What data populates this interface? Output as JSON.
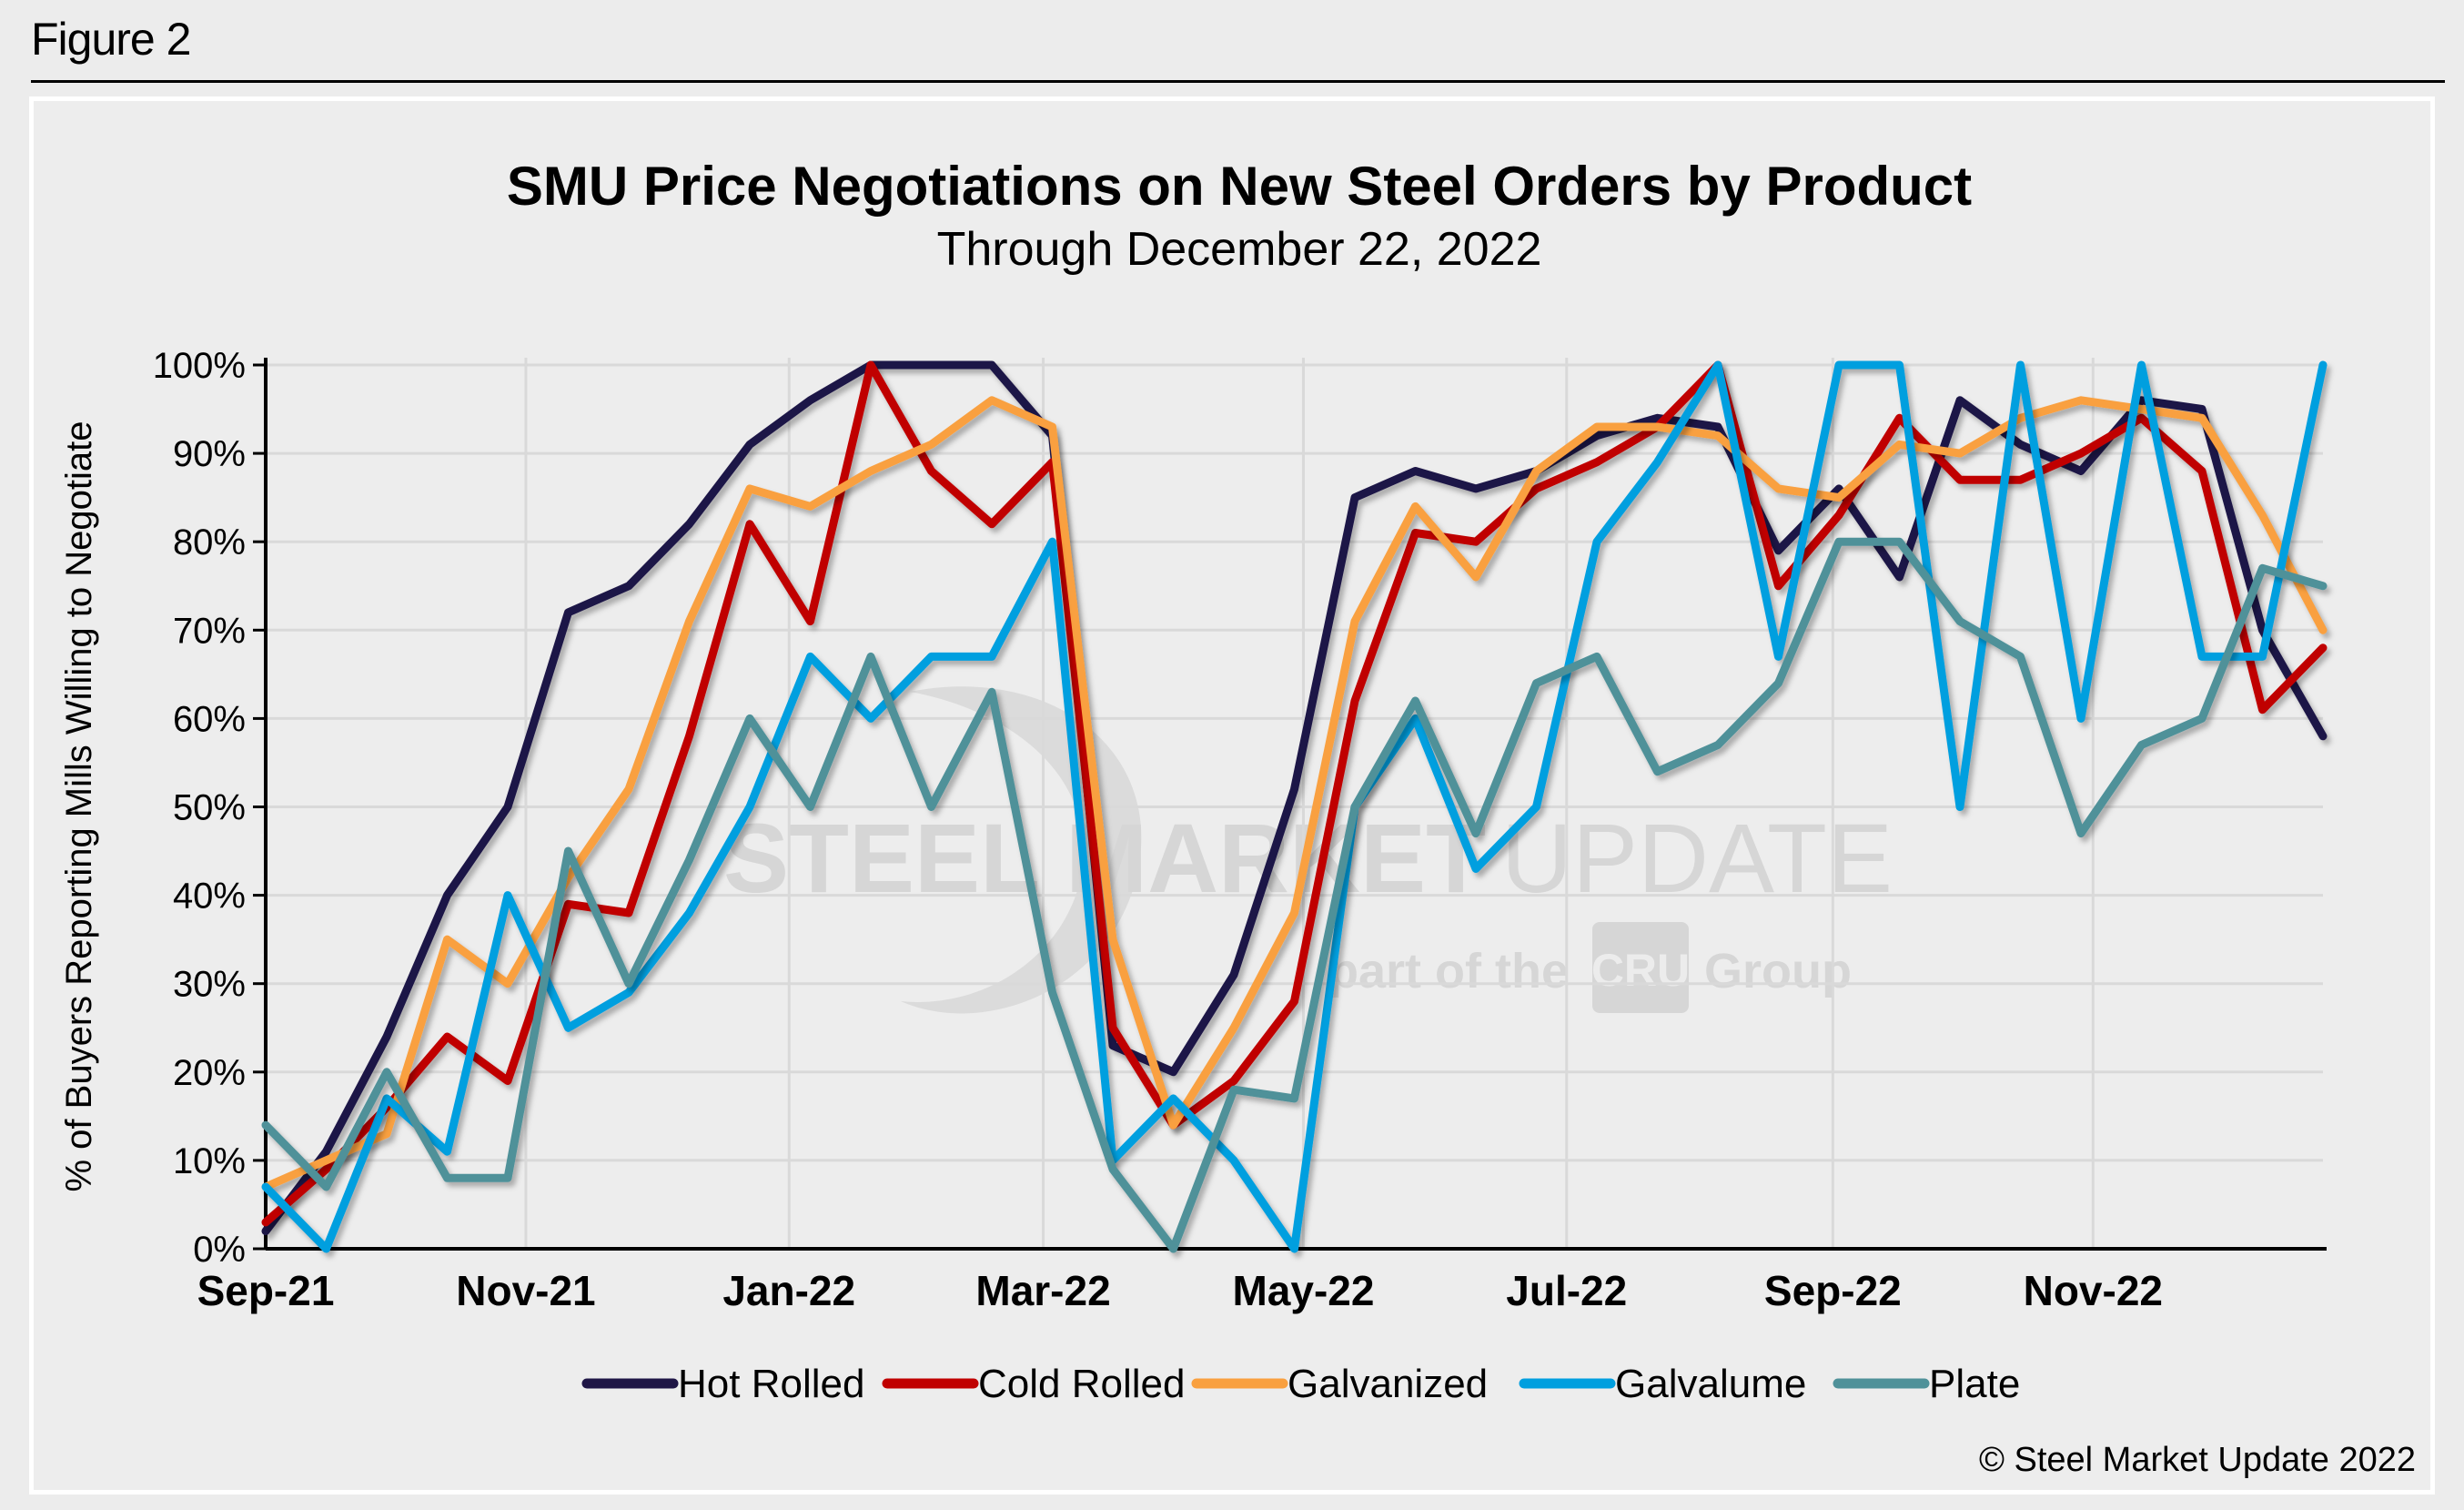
{
  "figure_label": "Figure 2",
  "copyright": "© Steel Market Update 2022",
  "watermark": {
    "brand_bold": "STEEL MARKET",
    "brand_light": "UPDATE",
    "tagline_before": "part of the",
    "tagline_box": "CRU",
    "tagline_after": "Group"
  },
  "chart_data": {
    "type": "line",
    "title": "SMU Price Negotiations on New Steel Orders by Product",
    "subtitle": "Through December 22, 2022",
    "xlabel": "",
    "ylabel": "% of Buyers Reporting Mills Willing to Negotiate",
    "ylim": [
      0,
      100
    ],
    "yticks": [
      "0%",
      "10%",
      "20%",
      "30%",
      "40%",
      "50%",
      "60%",
      "70%",
      "80%",
      "90%",
      "100%"
    ],
    "xtick_labels": [
      {
        "label": "Sep-21",
        "index": 0
      },
      {
        "label": "Nov-21",
        "index": 4.3
      },
      {
        "label": "Jan-22",
        "index": 8.65
      },
      {
        "label": "Mar-22",
        "index": 12.85
      },
      {
        "label": "May-22",
        "index": 17.15
      },
      {
        "label": "Jul-22",
        "index": 21.5
      },
      {
        "label": "Sep-22",
        "index": 25.9
      },
      {
        "label": "Nov-22",
        "index": 30.2
      }
    ],
    "grid": true,
    "legend_position": "bottom",
    "point_count": 35,
    "series": [
      {
        "name": "Hot Rolled",
        "color": "#1f1646",
        "values": [
          2,
          11,
          24,
          40,
          50,
          72,
          75,
          82,
          91,
          96,
          100,
          100,
          100,
          92,
          23,
          20,
          31,
          52,
          85,
          88,
          86,
          88,
          92,
          94,
          93,
          79,
          86,
          76,
          96,
          91,
          88,
          96,
          95,
          70,
          58
        ]
      },
      {
        "name": "Cold Rolled",
        "color": "#c00000",
        "values": [
          3,
          9,
          16,
          24,
          19,
          39,
          38,
          58,
          82,
          71,
          100,
          88,
          82,
          89,
          25,
          14,
          19,
          28,
          62,
          81,
          80,
          86,
          89,
          93,
          100,
          75,
          83,
          94,
          87,
          87,
          90,
          94,
          88,
          61,
          68
        ]
      },
      {
        "name": "Galvanized",
        "color": "#f9a03f",
        "values": [
          7,
          10,
          13,
          35,
          30,
          42,
          52,
          71,
          86,
          84,
          88,
          91,
          96,
          93,
          35,
          14,
          25,
          38,
          71,
          84,
          76,
          88,
          93,
          93,
          92,
          86,
          85,
          91,
          90,
          94,
          96,
          95,
          94,
          83,
          70
        ]
      },
      {
        "name": "Galvalume",
        "color": "#009fdf",
        "values": [
          7,
          0,
          17,
          11,
          40,
          25,
          29,
          38,
          50,
          67,
          60,
          67,
          67,
          80,
          10,
          17,
          10,
          0,
          50,
          60,
          43,
          50,
          80,
          89,
          100,
          67,
          100,
          100,
          50,
          100,
          60,
          100,
          67,
          67,
          100
        ]
      },
      {
        "name": "Plate",
        "color": "#4f9199",
        "values": [
          14,
          7,
          20,
          8,
          8,
          45,
          30,
          44,
          60,
          50,
          67,
          50,
          63,
          29,
          9,
          0,
          18,
          17,
          50,
          62,
          47,
          64,
          67,
          54,
          57,
          64,
          80,
          80,
          71,
          67,
          47,
          57,
          60,
          77,
          75
        ]
      }
    ]
  }
}
